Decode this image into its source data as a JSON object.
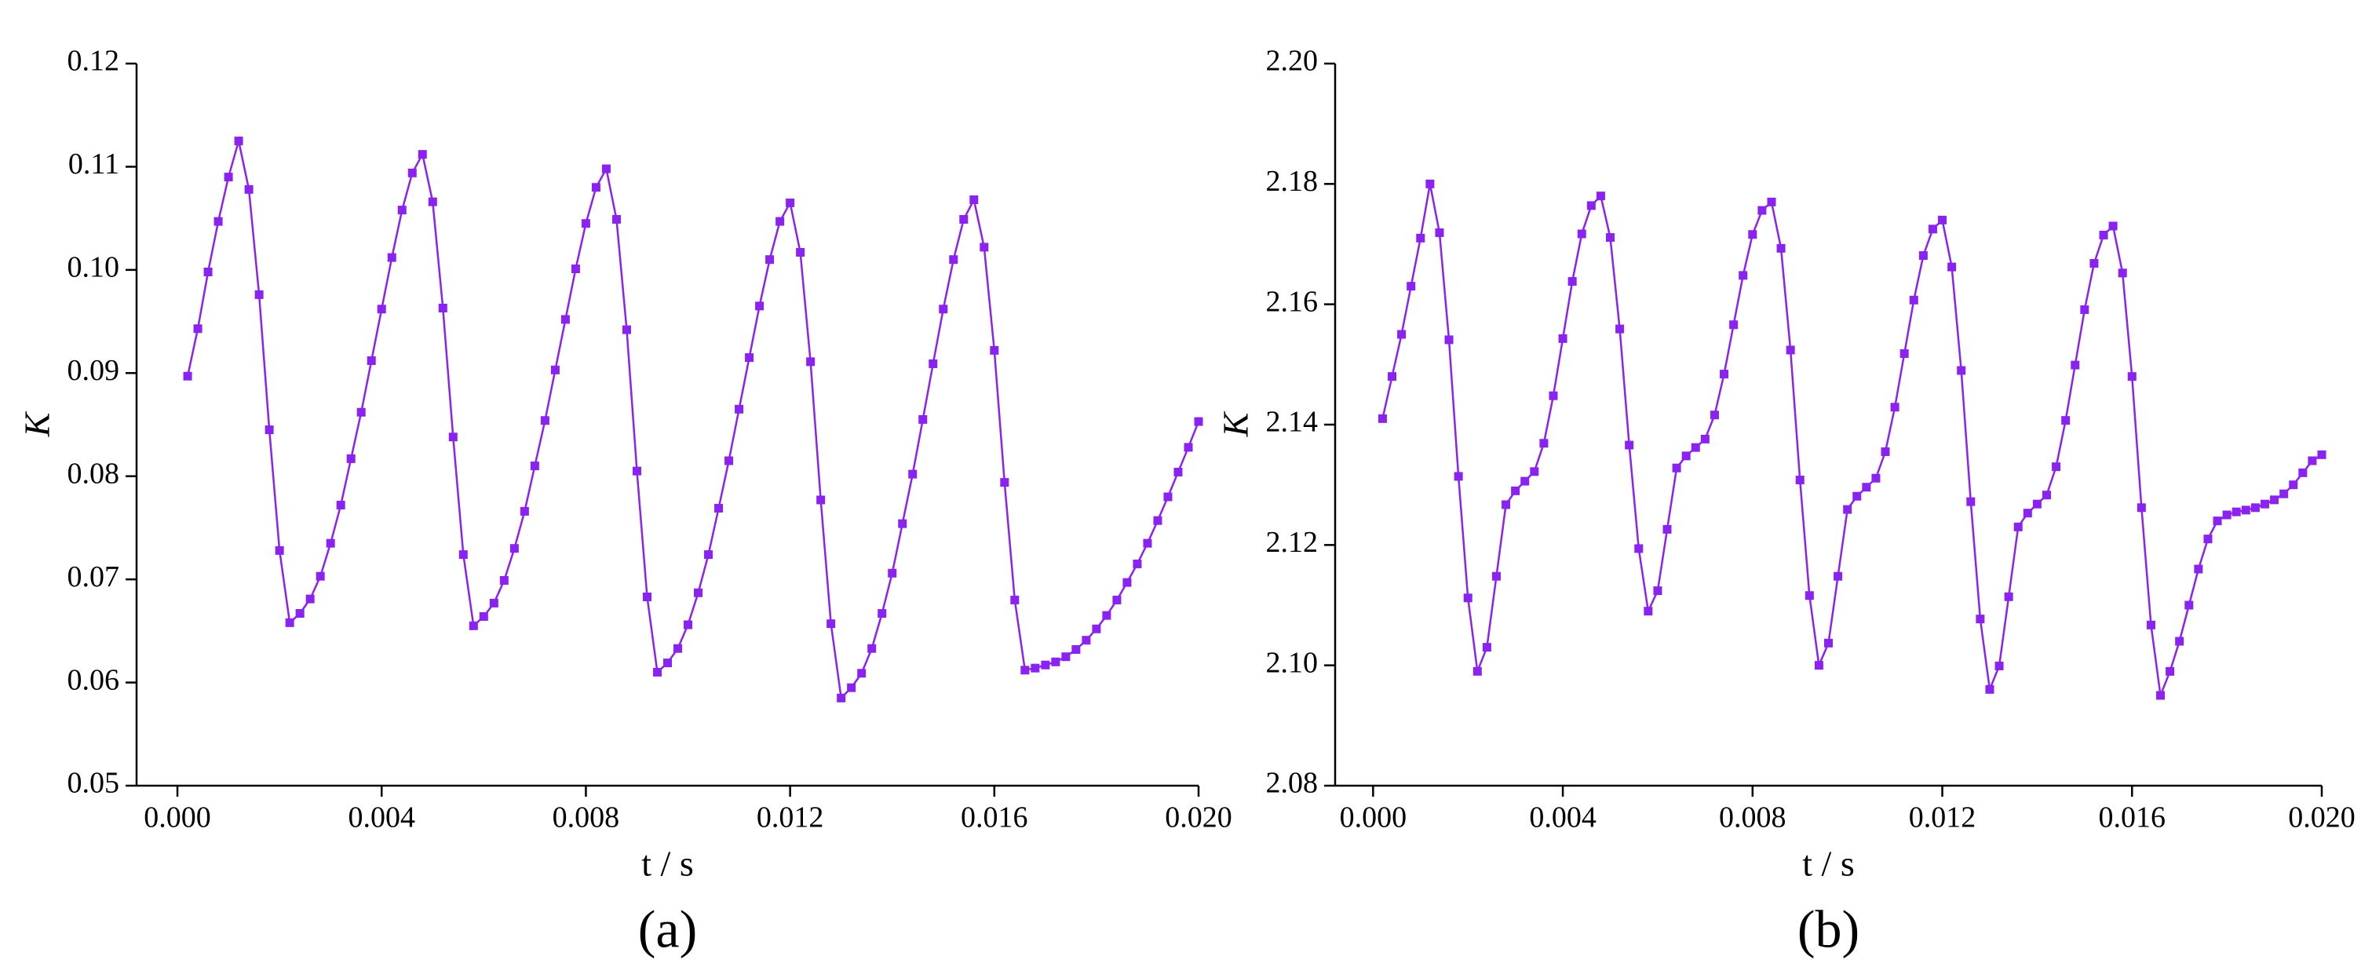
{
  "chart_data": [
    {
      "type": "line",
      "panel_label": "(a)",
      "x_label": "t / s",
      "y_label": "K",
      "xlim": [
        -0.0008,
        0.02
      ],
      "ylim": [
        0.05,
        0.12
      ],
      "xticks": [
        {
          "value": 0,
          "label": "0.000"
        },
        0.004,
        0.008,
        0.012,
        0.016,
        {
          "value": 0.02,
          "label": "0.020"
        }
      ],
      "yticks": [
        0.05,
        0.06,
        0.07,
        0.08,
        0.09,
        {
          "value": 0.1,
          "label": "0.10"
        },
        0.11,
        0.12
      ],
      "x": [
        0.0002,
        0.0004,
        0.0006,
        0.0008,
        0.001,
        0.0012,
        0.0014,
        0.0016,
        0.0018,
        0.002,
        0.0022,
        0.0024,
        0.0026,
        0.0028,
        0.003,
        0.0032,
        0.0034,
        0.0036,
        0.0038,
        0.004,
        0.0042,
        0.0044,
        0.0046,
        0.0048,
        0.005,
        0.0052,
        0.0054,
        0.0056,
        0.0058,
        0.006,
        0.0062,
        0.0064,
        0.0066,
        0.0068,
        0.007,
        0.0072,
        0.0074,
        0.0076,
        0.0078,
        0.008,
        0.0082,
        0.0084,
        0.0086,
        0.0088,
        0.009,
        0.0092,
        0.0094,
        0.0096,
        0.0098,
        0.01,
        0.0102,
        0.0104,
        0.0106,
        0.0108,
        0.011,
        0.0112,
        0.0114,
        0.0116,
        0.0118,
        0.012,
        0.0122,
        0.0124,
        0.0126,
        0.0128,
        0.013,
        0.0132,
        0.0134,
        0.0136,
        0.0138,
        0.014,
        0.0142,
        0.0144,
        0.0146,
        0.0148,
        0.015,
        0.0152,
        0.0154,
        0.0156,
        0.0158,
        0.016,
        0.0162,
        0.0164,
        0.0166,
        0.0168,
        0.017,
        0.0172,
        0.0174,
        0.0176,
        0.0178,
        0.018,
        0.0182,
        0.0184,
        0.0186,
        0.0188,
        0.019,
        0.0192,
        0.0194,
        0.0196,
        0.0198,
        0.02
      ],
      "series": [
        {
          "color": "#8a22f0",
          "values": [
            0.0897,
            0.0943,
            0.0998,
            0.1047,
            0.109,
            0.1125,
            0.1078,
            0.0976,
            0.0845,
            0.0728,
            0.0658,
            0.0667,
            0.0681,
            0.0703,
            0.0735,
            0.0772,
            0.0817,
            0.0862,
            0.0912,
            0.0962,
            0.1012,
            0.1058,
            0.1094,
            0.1112,
            0.1066,
            0.0963,
            0.0838,
            0.0724,
            0.0655,
            0.0664,
            0.0677,
            0.0699,
            0.073,
            0.0766,
            0.081,
            0.0854,
            0.0903,
            0.0952,
            0.1001,
            0.1045,
            0.108,
            0.1098,
            0.1049,
            0.0942,
            0.0805,
            0.0683,
            0.061,
            0.0619,
            0.0633,
            0.0656,
            0.0687,
            0.0724,
            0.0769,
            0.0815,
            0.0865,
            0.0915,
            0.0965,
            0.101,
            0.1047,
            0.1065,
            0.1017,
            0.0911,
            0.0777,
            0.0657,
            0.0585,
            0.0595,
            0.0609,
            0.0633,
            0.0667,
            0.0706,
            0.0754,
            0.0802,
            0.0855,
            0.0909,
            0.0962,
            0.101,
            0.1049,
            0.1068,
            0.1022,
            0.0922,
            0.0794,
            0.068,
            0.0612,
            0.0614,
            0.0617,
            0.062,
            0.0625,
            0.0632,
            0.0641,
            0.0652,
            0.0665,
            0.068,
            0.0697,
            0.0715,
            0.0735,
            0.0757,
            0.078,
            0.0804,
            0.0828,
            0.0853
          ]
        }
      ]
    },
    {
      "type": "line",
      "panel_label": "(b)",
      "x_label": "t / s",
      "y_label": "K",
      "xlim": [
        -0.0008,
        0.02
      ],
      "ylim": [
        2.08,
        2.2
      ],
      "xticks": [
        {
          "value": 0,
          "label": "0.000"
        },
        0.004,
        0.008,
        0.012,
        0.016,
        {
          "value": 0.02,
          "label": "0.020"
        }
      ],
      "yticks": [
        2.08,
        {
          "value": 2.1,
          "label": "2.10"
        },
        2.12,
        2.14,
        2.16,
        2.18,
        {
          "value": 2.2,
          "label": "2.20"
        }
      ],
      "x": [
        0.0002,
        0.0004,
        0.0006,
        0.0008,
        0.001,
        0.0012,
        0.0014,
        0.0016,
        0.0018,
        0.002,
        0.0022,
        0.0024,
        0.0026,
        0.0028,
        0.003,
        0.0032,
        0.0034,
        0.0036,
        0.0038,
        0.004,
        0.0042,
        0.0044,
        0.0046,
        0.0048,
        0.005,
        0.0052,
        0.0054,
        0.0056,
        0.0058,
        0.006,
        0.0062,
        0.0064,
        0.0066,
        0.0068,
        0.007,
        0.0072,
        0.0074,
        0.0076,
        0.0078,
        0.008,
        0.0082,
        0.0084,
        0.0086,
        0.0088,
        0.009,
        0.0092,
        0.0094,
        0.0096,
        0.0098,
        0.01,
        0.0102,
        0.0104,
        0.0106,
        0.0108,
        0.011,
        0.0112,
        0.0114,
        0.0116,
        0.0118,
        0.012,
        0.0122,
        0.0124,
        0.0126,
        0.0128,
        0.013,
        0.0132,
        0.0134,
        0.0136,
        0.0138,
        0.014,
        0.0142,
        0.0144,
        0.0146,
        0.0148,
        0.015,
        0.0152,
        0.0154,
        0.0156,
        0.0158,
        0.016,
        0.0162,
        0.0164,
        0.0166,
        0.0168,
        0.017,
        0.0172,
        0.0174,
        0.0176,
        0.0178,
        0.018,
        0.0182,
        0.0184,
        0.0186,
        0.0188,
        0.019,
        0.0192,
        0.0194,
        0.0196,
        0.0198,
        0.02
      ],
      "series": [
        {
          "color": "#8a22f0",
          "values": [
            2.141,
            2.148,
            2.155,
            2.163,
            2.171,
            2.18,
            2.1719,
            2.1541,
            2.1314,
            2.1112,
            2.099,
            2.103,
            2.1148,
            2.1267,
            2.129,
            2.1306,
            2.1322,
            2.1369,
            2.1448,
            2.1543,
            2.1638,
            2.1717,
            2.1764,
            2.178,
            2.1711,
            2.1559,
            2.1366,
            2.1194,
            2.109,
            2.1124,
            2.1226,
            2.1328,
            2.1348,
            2.1362,
            2.1376,
            2.1416,
            2.1484,
            2.1566,
            2.1648,
            2.1716,
            2.1756,
            2.177,
            2.1693,
            2.1524,
            2.1308,
            2.1116,
            2.1,
            2.1037,
            2.1148,
            2.1259,
            2.1281,
            2.1296,
            2.1311,
            2.1355,
            2.1429,
            2.1518,
            2.1607,
            2.1681,
            2.1725,
            2.174,
            2.1662,
            2.149,
            2.1272,
            2.1077,
            2.096,
            2.0999,
            2.1114,
            2.123,
            2.1253,
            2.1268,
            2.1283,
            2.133,
            2.1407,
            2.1499,
            2.1591,
            2.1668,
            2.1715,
            2.173,
            2.1652,
            2.148,
            2.1262,
            2.1067,
            2.095,
            2.099,
            2.104,
            2.11,
            2.116,
            2.121,
            2.124,
            2.125,
            2.1255,
            2.1258,
            2.1262,
            2.1268,
            2.1275,
            2.1285,
            2.13,
            2.132,
            2.134,
            2.135
          ]
        }
      ]
    }
  ]
}
